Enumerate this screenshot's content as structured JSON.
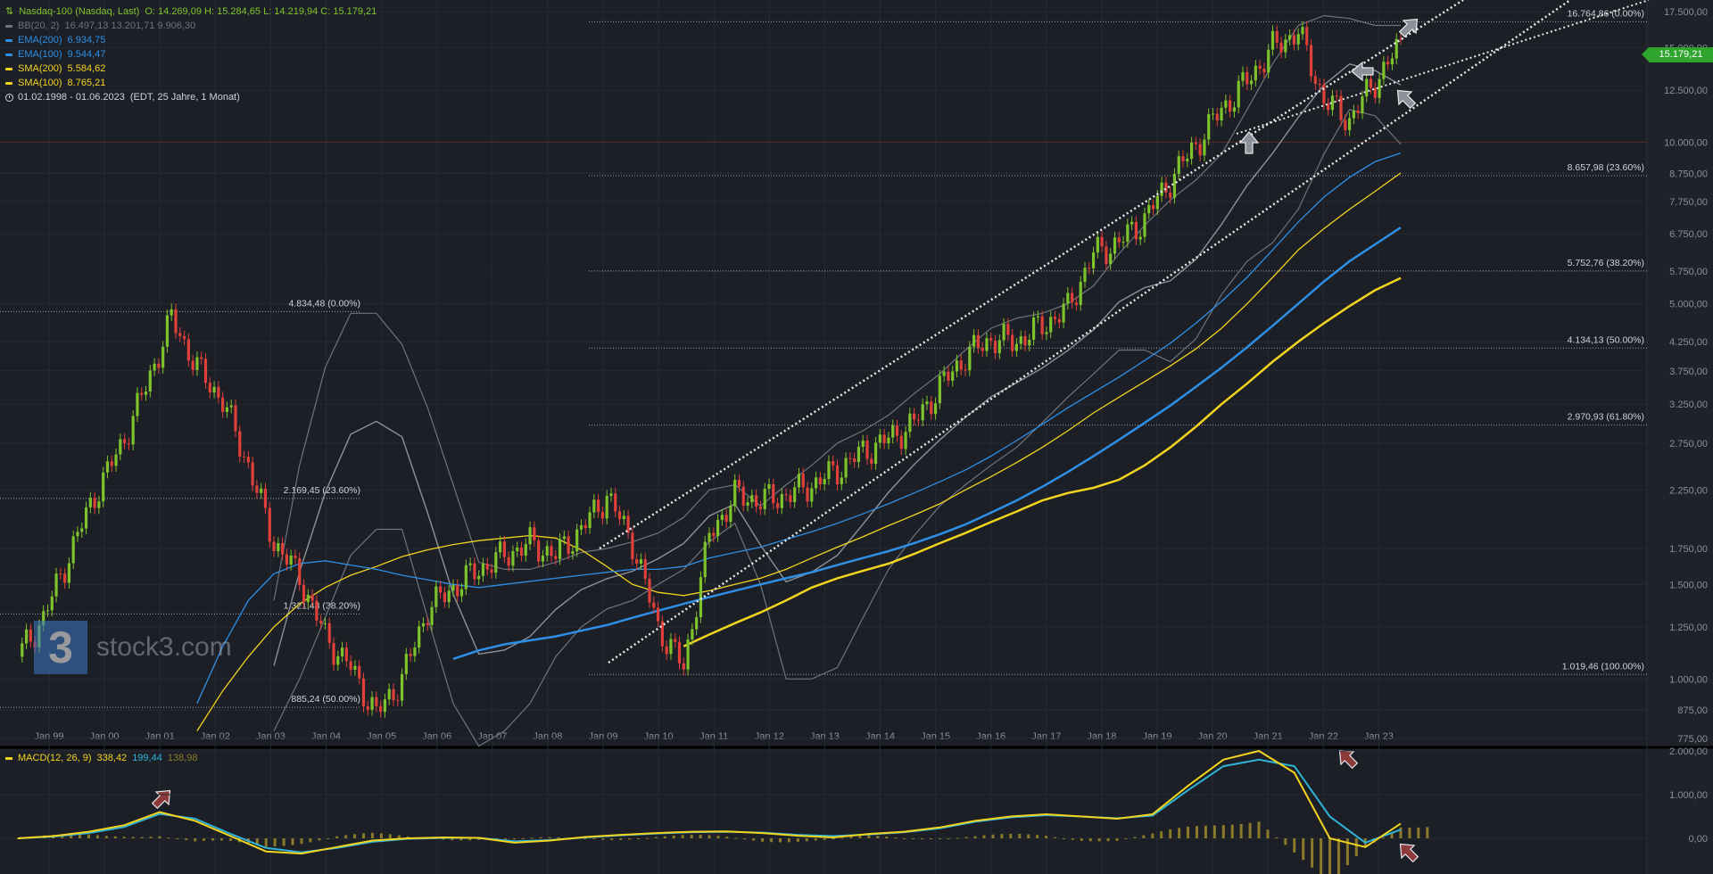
{
  "header": {
    "instrument": "Nasdaq-100 (Nasdaq, Last)",
    "ohlc": "O: 14.269,09  H: 15.284,65  L: 14.219,94  C: 15.179,21",
    "period": "01.02.1998 - 01.06.2023",
    "period_detail": "(EDT, 25 Jahre, 1 Monat)"
  },
  "legend": [
    {
      "name": "BB(20, 2)",
      "values": "16.497,13  13.201,71  9.906,30",
      "color": "#6f747c"
    },
    {
      "name": "EMA(200)",
      "values": "6.934,75",
      "color": "#2e8fe6"
    },
    {
      "name": "EMA(100)",
      "values": "9.544,47",
      "color": "#2e8fe6"
    },
    {
      "name": "SMA(200)",
      "values": "5.584,62",
      "color": "#f2d41f"
    },
    {
      "name": "SMA(100)",
      "values": "8.765,21",
      "color": "#f2d41f"
    }
  ],
  "last_price": "15.179,21",
  "logo_text": "stock3.com",
  "colors": {
    "up": "#7ec32b",
    "down": "#e0403a",
    "macd": "#f2d41f",
    "signal": "#2fb3d8",
    "hist": "#8a7a2a",
    "fib": "#cfd3da"
  },
  "chart_data": {
    "type": "line",
    "scale": "log",
    "ylim": [
      740,
      18400
    ],
    "y_ticks": [
      "17.500,00",
      "15.000,00",
      "12.500,00",
      "10.000,00",
      "8.750,00",
      "7.750,00",
      "6.750,00",
      "5.750,00",
      "5.000,00",
      "4.250,00",
      "3.750,00",
      "3.250,00",
      "2.750,00",
      "2.250,00",
      "1.750,00",
      "1.500,00",
      "1.250,00",
      "1.000,00",
      "875,00",
      "775,00"
    ],
    "x_ticks": [
      "Jan 99",
      "Jan 00",
      "Jan 01",
      "Jan 02",
      "Jan 03",
      "Jan 04",
      "Jan 05",
      "Jan 06",
      "Jan 07",
      "Jan 08",
      "Jan 09",
      "Jan 10",
      "Jan 11",
      "Jan 12",
      "Jan 13",
      "Jan 14",
      "Jan 15",
      "Jan 16",
      "Jan 17",
      "Jan 18",
      "Jan 19",
      "Jan 20",
      "Jan 21",
      "Jan 22",
      "Jan 23"
    ],
    "price": [
      1100,
      1300,
      1700,
      2200,
      2700,
      3500,
      4700,
      3800,
      3300,
      2500,
      1800,
      1550,
      1200,
      1050,
      860,
      1000,
      1350,
      1480,
      1600,
      1700,
      1790,
      1700,
      1900,
      2200,
      1800,
      1250,
      1050,
      1850,
      2200,
      2150,
      2200,
      2300,
      2450,
      2650,
      2800,
      3000,
      3500,
      4000,
      4300,
      4250,
      4550,
      4900,
      6200,
      6500,
      7200,
      8500,
      9900,
      11500,
      13000,
      15000,
      16100,
      12000,
      11000,
      13000,
      15179
    ],
    "sma100": [
      null,
      null,
      null,
      800,
      950,
      1100,
      1250,
      1380,
      1480,
      1560,
      1620,
      1690,
      1740,
      1780,
      1810,
      1830,
      1850,
      1830,
      1740,
      1620,
      1500,
      1450,
      1430,
      1460,
      1500,
      1540,
      1600,
      1680,
      1760,
      1840,
      1930,
      2020,
      2120,
      2250,
      2380,
      2530,
      2700,
      2900,
      3130,
      3350,
      3580,
      3830,
      4120,
      4500,
      5000,
      5600,
      6300,
      6900,
      7500,
      8100,
      8765
    ],
    "sma200": [
      null,
      null,
      null,
      null,
      null,
      null,
      null,
      null,
      null,
      null,
      null,
      null,
      null,
      null,
      null,
      null,
      null,
      null,
      null,
      1150,
      1210,
      1270,
      1330,
      1400,
      1480,
      1540,
      1590,
      1640,
      1710,
      1790,
      1870,
      1960,
      2050,
      2150,
      2220,
      2270,
      2350,
      2500,
      2700,
      2950,
      3250,
      3550,
      3900,
      4250,
      4600,
      4950,
      5300,
      5584
    ],
    "ema100": [
      null,
      null,
      null,
      900,
      1150,
      1400,
      1570,
      1640,
      1660,
      1630,
      1600,
      1560,
      1530,
      1500,
      1480,
      1500,
      1520,
      1540,
      1560,
      1580,
      1600,
      1600,
      1620,
      1680,
      1720,
      1760,
      1820,
      1880,
      1950,
      2030,
      2120,
      2220,
      2330,
      2450,
      2600,
      2780,
      2980,
      3200,
      3420,
      3650,
      3920,
      4220,
      4600,
      5050,
      5600,
      6300,
      7100,
      7900,
      8600,
      9200,
      9544
    ],
    "ema200": [
      null,
      null,
      null,
      null,
      null,
      null,
      null,
      null,
      1090,
      1130,
      1160,
      1180,
      1200,
      1230,
      1260,
      1300,
      1340,
      1380,
      1420,
      1460,
      1500,
      1540,
      1580,
      1630,
      1680,
      1730,
      1790,
      1860,
      1940,
      2040,
      2150,
      2280,
      2430,
      2600,
      2790,
      3000,
      3230,
      3500,
      3800,
      4150,
      4550,
      5000,
      5500,
      6000,
      6450,
      6934
    ],
    "bb_upper": [
      null,
      null,
      1400,
      2500,
      3800,
      4800,
      4800,
      4200,
      3200,
      2300,
      1650,
      1600,
      1600,
      1650,
      1720,
      1750,
      1800,
      1870,
      2000,
      2250,
      2300,
      2100,
      2300,
      2500,
      2750,
      2900,
      3100,
      3400,
      3700,
      4100,
      4500,
      4700,
      4800,
      5000,
      5400,
      6200,
      7000,
      7800,
      8500,
      9500,
      11500,
      14000,
      16500,
      17200,
      17000,
      16500,
      16500
    ],
    "bb_lower": [
      null,
      null,
      800,
      1000,
      1300,
      1700,
      1900,
      1900,
      1300,
      900,
      750,
      800,
      900,
      1100,
      1250,
      1350,
      1400,
      1500,
      1600,
      1800,
      1950,
      1500,
      1000,
      1000,
      1050,
      1300,
      1600,
      1850,
      2100,
      2300,
      2500,
      2700,
      3000,
      3350,
      3700,
      4100,
      4100,
      3900,
      4300,
      5200,
      6000,
      6500,
      7500,
      9500,
      11500,
      11200,
      9906
    ],
    "fib_left": [
      {
        "price": 4834.48,
        "label": "4.834,48 (0.00%)"
      },
      {
        "price": 2169.45,
        "label": "2.169,45 (23.60%)"
      },
      {
        "price": 1321.48,
        "label": "1.321,48 (38.20%)"
      },
      {
        "price": 885.24,
        "label": "885,24 (50.00%)"
      }
    ],
    "fib_right": [
      {
        "price": 16764.86,
        "label": "16.764,86 (0.00%)"
      },
      {
        "price": 8657.98,
        "label": "8.657,98 (23.60%)"
      },
      {
        "price": 5752.76,
        "label": "5.752,76 (38.20%)"
      },
      {
        "price": 4134.13,
        "label": "4.134,13 (50.00%)"
      },
      {
        "price": 2970.93,
        "label": "2.970,93 (61.80%)"
      },
      {
        "price": 1019.46,
        "label": "1.019,46 (100.00%)"
      }
    ],
    "macd": {
      "name": "MACD(12, 26, 9)",
      "values": [
        "338,42",
        "199,44",
        "138,98"
      ],
      "y_ticks": [
        "2.000,00",
        "1.000,00",
        "0,00"
      ],
      "ylim": [
        -800,
        2000
      ],
      "macd_line": [
        0,
        50,
        150,
        300,
        600,
        400,
        50,
        -300,
        -350,
        -200,
        -50,
        0,
        20,
        10,
        -100,
        -50,
        30,
        80,
        120,
        150,
        160,
        120,
        60,
        20,
        100,
        150,
        250,
        400,
        500,
        550,
        500,
        450,
        550,
        1200,
        1800,
        2000,
        1500,
        0,
        -200,
        338
      ],
      "signal_line": [
        0,
        40,
        120,
        260,
        560,
        450,
        100,
        -220,
        -320,
        -220,
        -80,
        -10,
        10,
        10,
        -70,
        -40,
        20,
        70,
        110,
        140,
        150,
        130,
        80,
        50,
        90,
        140,
        230,
        380,
        480,
        530,
        500,
        460,
        520,
        1100,
        1650,
        1800,
        1650,
        500,
        -100,
        199
      ]
    }
  }
}
